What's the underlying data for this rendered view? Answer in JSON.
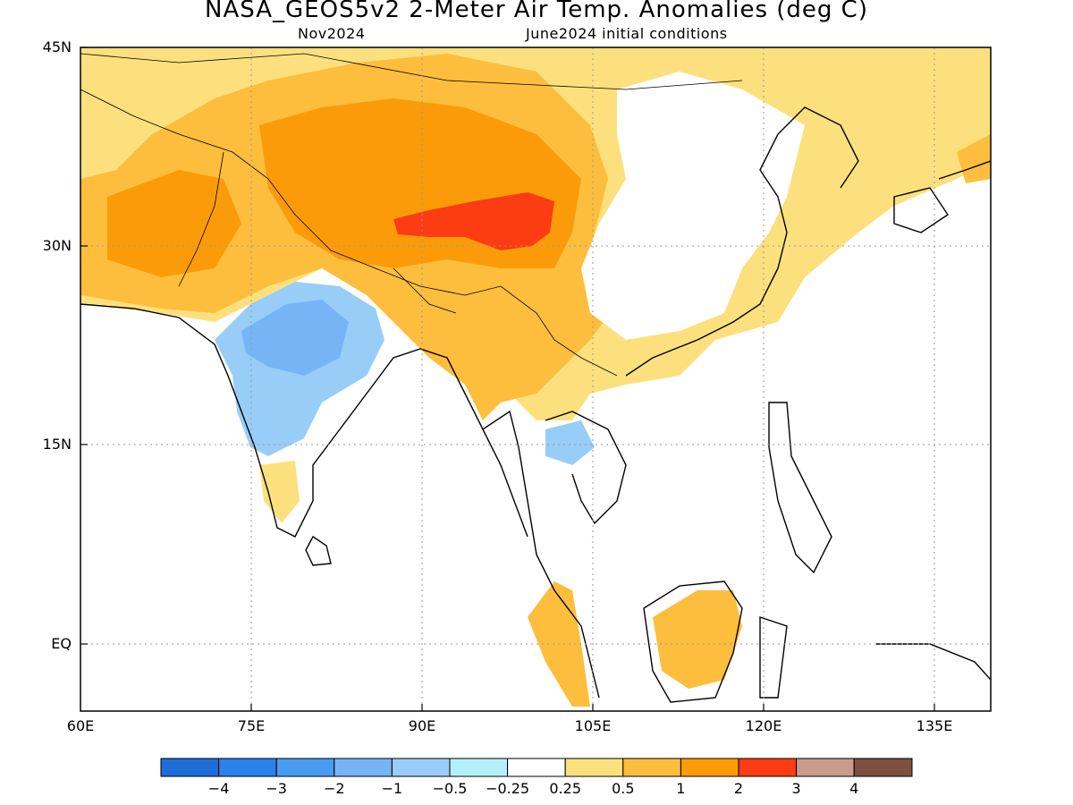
{
  "header": {
    "title": "NASA_GEOS5v2 2-Meter Air Temp. Anomalies (deg C)",
    "subtitle_left": "Nov2024",
    "subtitle_right": "June2024 initial conditions"
  },
  "axes": {
    "lat_ticks": [
      "45N",
      "30N",
      "15N",
      "EQ"
    ],
    "lon_ticks": [
      "60E",
      "75E",
      "90E",
      "105E",
      "120E",
      "135E"
    ]
  },
  "colorbar": {
    "labels": [
      "−4",
      "−3",
      "−2",
      "−1",
      "−0.5",
      "−0.25",
      "0.25",
      "0.5",
      "1",
      "2",
      "3",
      "4"
    ],
    "colors": [
      "#1e6ed7",
      "#2a82ea",
      "#4a9bf2",
      "#76b4f6",
      "#98cdf8",
      "#b4f0fa",
      "#ffffff",
      "#fde07e",
      "#fcbe3c",
      "#fc9b0a",
      "#fc3c12",
      "#c89b8c",
      "#7d5040"
    ]
  },
  "chart_data": {
    "type": "heatmap",
    "lon_range": [
      60,
      140
    ],
    "lat_range": [
      -5,
      45
    ]
  }
}
